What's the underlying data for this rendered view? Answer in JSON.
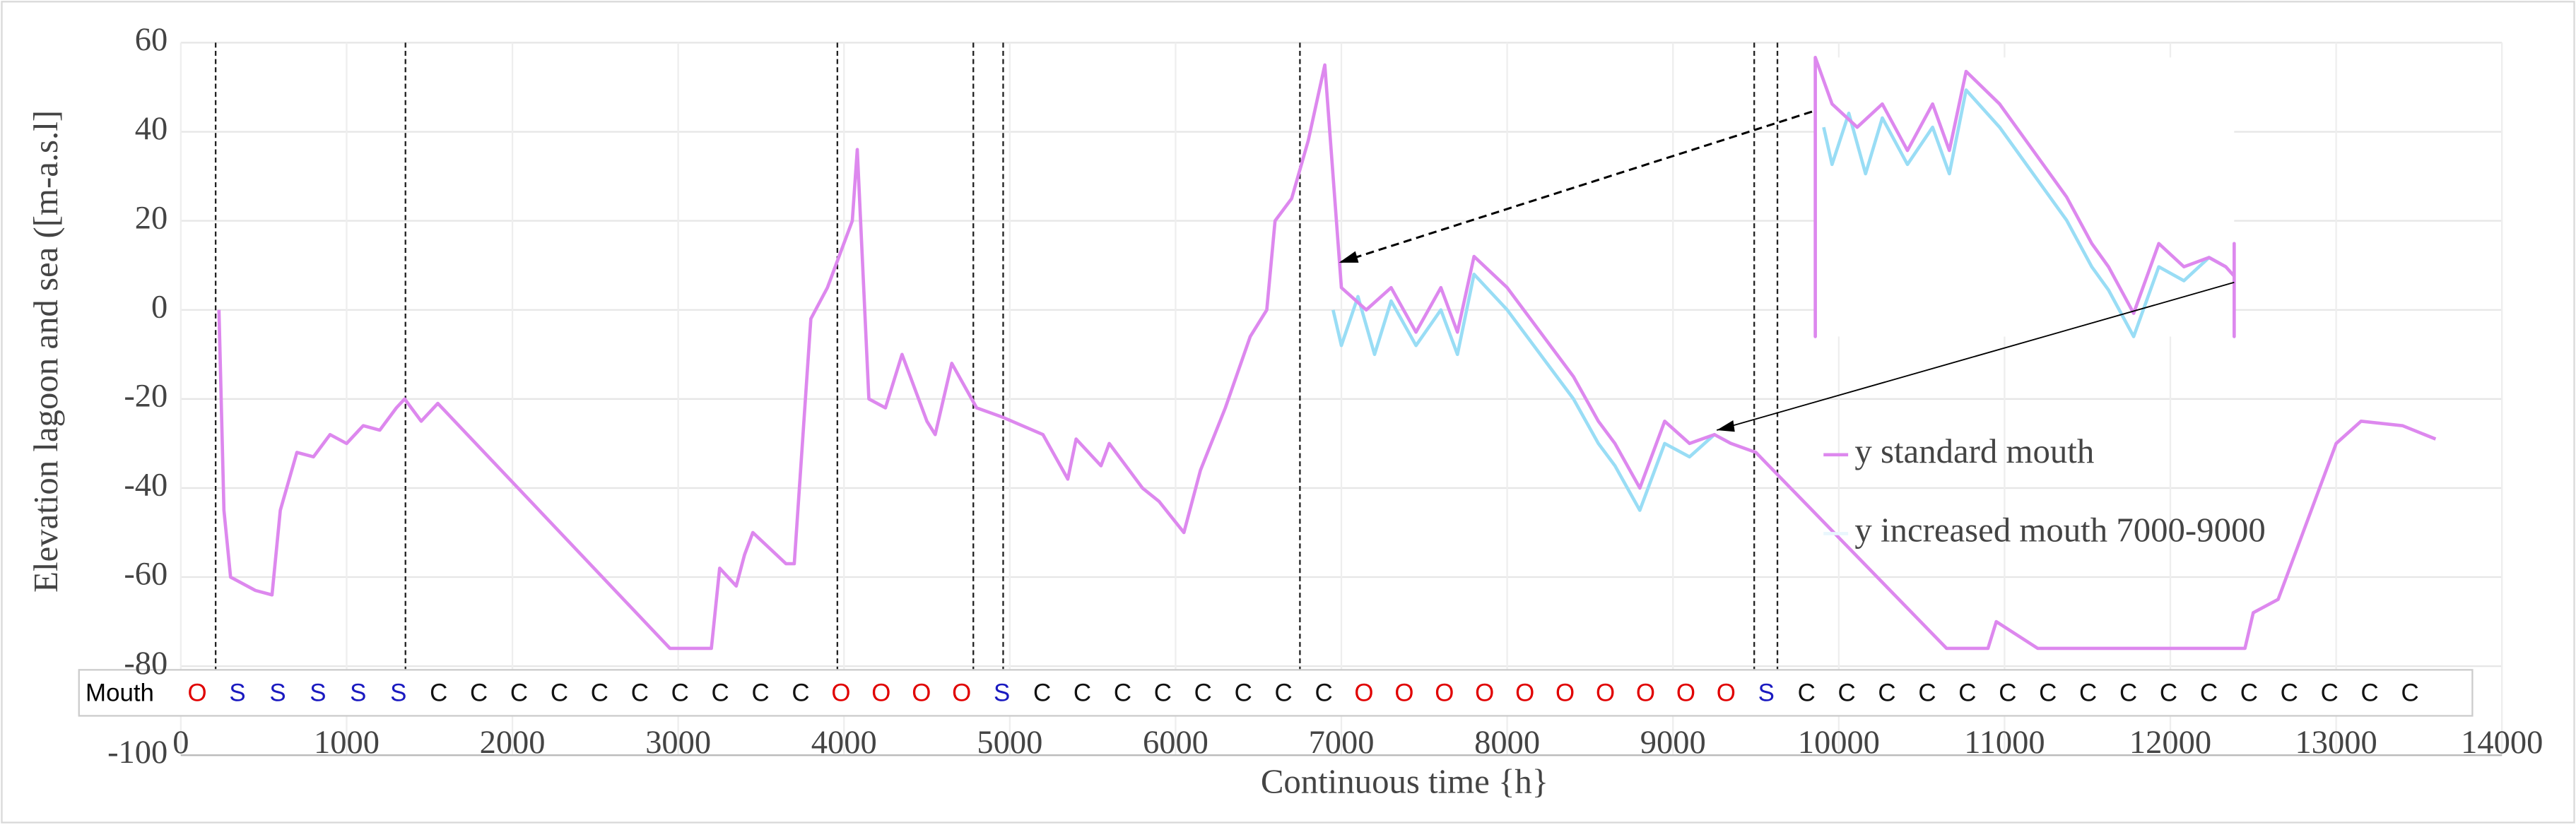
{
  "chart_data": {
    "type": "line",
    "y_label": "Elevation lagoon and sea ([m-a.s.l]",
    "x_label": "Continuous time {h}",
    "xlim": [
      0,
      14000
    ],
    "xticks": [
      0,
      1000,
      2000,
      3000,
      4000,
      5000,
      6000,
      7000,
      8000,
      9000,
      10000,
      11000,
      12000,
      13000,
      14000
    ],
    "ylim": [
      -100,
      60
    ],
    "yticks": [
      -100,
      -80,
      -60,
      -40,
      -20,
      0,
      20,
      40,
      60
    ],
    "grid": true,
    "legend": "right",
    "series": [
      {
        "name": "y standard mouth",
        "color": "#dd88ee",
        "x": [
          230,
          260,
          300,
          450,
          550,
          600,
          700,
          800,
          900,
          1000,
          1100,
          1200,
          1300,
          1350,
          1450,
          1550,
          2950,
          3200,
          3250,
          3350,
          3400,
          3450,
          3650,
          3700,
          3800,
          3900,
          3950,
          4050,
          4080,
          4150,
          4250,
          4350,
          4500,
          4550,
          4650,
          4800,
          4950,
          5200,
          5350,
          5400,
          5550,
          5600,
          5800,
          5900,
          6050,
          6150,
          6300,
          6450,
          6550,
          6600,
          6700,
          6800,
          6900,
          7000,
          7150,
          7300,
          7450,
          7600,
          7700,
          7800,
          8000,
          8200,
          8400,
          8550,
          8650,
          8800,
          8950,
          9100,
          9250,
          9350,
          9500,
          10650,
          10900,
          10950,
          11200,
          12450,
          12500,
          12650,
          12800,
          12900,
          13000,
          13150,
          13400,
          13600
        ],
        "values": [
          0,
          -45,
          -60,
          -63,
          -64,
          -45,
          -32,
          -33,
          -28,
          -30,
          -26,
          -27,
          -22,
          -20,
          -25,
          -21,
          -76,
          -76,
          -58,
          -62,
          -55,
          -50,
          -57,
          -57,
          -2,
          5,
          10,
          20,
          36,
          -20,
          -22,
          -10,
          -25,
          -28,
          -12,
          -22,
          -24,
          -28,
          -38,
          -29,
          -35,
          -30,
          -40,
          -43,
          -50,
          -36,
          -22,
          -6,
          0,
          20,
          25,
          38,
          55,
          5,
          0,
          5,
          -5,
          5,
          -5,
          12,
          5,
          -5,
          -15,
          -25,
          -30,
          -40,
          -25,
          -30,
          -28,
          -30,
          -32,
          -76,
          -76,
          -70,
          -76,
          -76,
          -68,
          -65,
          -50,
          -40,
          -30,
          -25,
          -26,
          -29
        ]
      },
      {
        "name": "y increased mouth 7000-9000",
        "color": "#99ddf5",
        "x": [
          6950,
          7000,
          7100,
          7200,
          7300,
          7450,
          7600,
          7700,
          7800,
          8000,
          8200,
          8400,
          8550,
          8650,
          8800,
          8950,
          9100,
          9250,
          9350
        ],
        "values": [
          0,
          -8,
          3,
          -10,
          2,
          -8,
          0,
          -10,
          8,
          0,
          -10,
          -20,
          -30,
          -35,
          -45,
          -30,
          -33,
          -28,
          -30
        ]
      }
    ],
    "event_lines": [
      210,
      1355,
      3960,
      4780,
      4960,
      6750,
      9490,
      9630
    ],
    "mouth_label": "Mouth",
    "mouth_states": [
      "O",
      "S",
      "S",
      "S",
      "S",
      "S",
      "C",
      "C",
      "C",
      "C",
      "C",
      "C",
      "C",
      "C",
      "C",
      "C",
      "O",
      "O",
      "O",
      "O",
      "S",
      "C",
      "C",
      "C",
      "C",
      "C",
      "C",
      "C",
      "C",
      "O",
      "O",
      "O",
      "O",
      "O",
      "O",
      "O",
      "O",
      "O",
      "O",
      "S",
      "C",
      "C",
      "C",
      "C",
      "C",
      "C",
      "C",
      "C",
      "C",
      "C",
      "C",
      "C",
      "C",
      "C",
      "C",
      "C"
    ],
    "mouth_colors": {
      "O": "#e00000",
      "S": "#1a1ac0",
      "C": "#111111"
    }
  }
}
